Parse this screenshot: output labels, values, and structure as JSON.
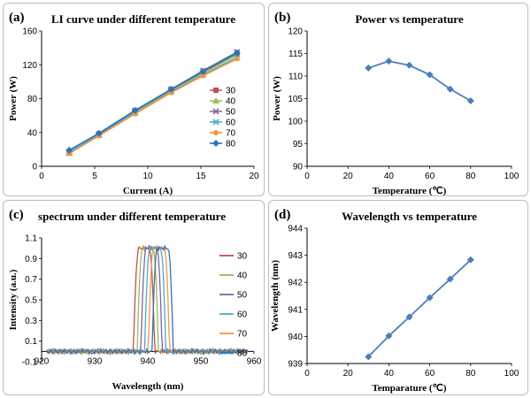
{
  "chart_data": [
    {
      "panel_label": "(a)",
      "type": "line",
      "title": "LI curve under different temperature",
      "xlabel": "Current (A)",
      "ylabel": "Power (W)",
      "xlim": [
        0,
        20
      ],
      "ylim": [
        0,
        160
      ],
      "xticks": [
        0,
        5,
        10,
        15,
        20
      ],
      "yticks": [
        0,
        40,
        80,
        120,
        160
      ],
      "xtick_labels": [
        "0",
        "5",
        "10",
        "15",
        "20"
      ],
      "ytick_labels": [
        "0",
        "40",
        "80",
        "120",
        "160"
      ],
      "legend_position": "middle-right",
      "series": [
        {
          "name": "30",
          "color": "#c0504d",
          "marker": "square",
          "x": [
            2.6,
            5.4,
            8.8,
            12.2,
            15.2,
            18.4
          ],
          "y": [
            16,
            37,
            64,
            90,
            111,
            133
          ]
        },
        {
          "name": "40",
          "color": "#9bbb59",
          "marker": "triangle",
          "x": [
            2.6,
            5.4,
            8.8,
            12.2,
            15.2,
            18.4
          ],
          "y": [
            16,
            37,
            64,
            89,
            110,
            132
          ]
        },
        {
          "name": "50",
          "color": "#8064a2",
          "marker": "x",
          "x": [
            2.6,
            5.4,
            8.8,
            12.2,
            15.2,
            18.4
          ],
          "y": [
            16,
            38,
            66,
            91,
            113,
            135
          ]
        },
        {
          "name": "60",
          "color": "#4bacc6",
          "marker": "x",
          "x": [
            2.6,
            5.4,
            8.8,
            12.2,
            15.2,
            18.4
          ],
          "y": [
            17,
            37,
            63,
            88,
            108,
            129
          ]
        },
        {
          "name": "70",
          "color": "#f79646",
          "marker": "circle",
          "x": [
            2.6,
            5.4,
            8.8,
            12.2,
            15.2,
            18.4
          ],
          "y": [
            15,
            36,
            62,
            87,
            107,
            127
          ]
        },
        {
          "name": "80",
          "color": "#2e75b6",
          "marker": "diamond",
          "x": [
            2.6,
            5.4,
            8.8,
            12.2,
            15.2,
            18.4
          ],
          "y": [
            19,
            39,
            66,
            91,
            112,
            134
          ]
        }
      ]
    },
    {
      "panel_label": "(b)",
      "type": "line",
      "title": "Power vs temperature",
      "xlabel": "Temperature (℃)",
      "ylabel": "Power (W)",
      "xlim": [
        0,
        100
      ],
      "ylim": [
        90,
        120
      ],
      "xticks": [
        0,
        20,
        40,
        60,
        80,
        100
      ],
      "yticks": [
        90,
        95,
        100,
        105,
        110,
        115,
        120
      ],
      "xtick_labels": [
        "0",
        "20",
        "40",
        "60",
        "80",
        "100"
      ],
      "ytick_labels": [
        "90",
        "95",
        "100",
        "105",
        "110",
        "115",
        "120"
      ],
      "series": [
        {
          "name": "Power",
          "color": "#4a7ebb",
          "marker": "diamond",
          "x": [
            30,
            40,
            50,
            60,
            70,
            80
          ],
          "y": [
            111.8,
            113.3,
            112.4,
            110.3,
            107.1,
            104.5
          ]
        }
      ]
    },
    {
      "panel_label": "(c)",
      "type": "line",
      "title": "spectrum under different temperature",
      "xlabel": "Wavelength (nm)",
      "ylabel": "Intensity (a.u.)",
      "xlim": [
        920,
        960
      ],
      "ylim": [
        -0.1,
        1.1
      ],
      "xticks": [
        920,
        930,
        940,
        950,
        960
      ],
      "yticks": [
        -0.1,
        0.1,
        0.3,
        0.5,
        0.7,
        0.9,
        1.1
      ],
      "xtick_labels": [
        "920",
        "930",
        "940",
        "950",
        "960"
      ],
      "ytick_labels": [
        "-0.1",
        "0.1",
        "0.3",
        "0.5",
        "0.7",
        "0.9",
        "1.1"
      ],
      "legend_position": "right",
      "series": [
        {
          "name": "30",
          "color": "#c0504d",
          "center": 939.3
        },
        {
          "name": "40",
          "color": "#9bbb59",
          "center": 940.0
        },
        {
          "name": "50",
          "color": "#8064a2",
          "center": 940.7
        },
        {
          "name": "60",
          "color": "#4bacc6",
          "center": 941.4
        },
        {
          "name": "70",
          "color": "#f79646",
          "center": 942.1
        },
        {
          "name": "80",
          "color": "#2e75b6",
          "center": 942.8
        }
      ]
    },
    {
      "panel_label": "(d)",
      "type": "line",
      "title": "Wavelength vs temperature",
      "xlabel": "Temparature (℃)",
      "ylabel": "Wavelength (nm)",
      "xlim": [
        0,
        100
      ],
      "ylim": [
        939,
        944
      ],
      "xticks": [
        0,
        20,
        40,
        60,
        80,
        100
      ],
      "yticks": [
        939,
        940,
        941,
        942,
        943,
        944
      ],
      "xtick_labels": [
        "0",
        "20",
        "40",
        "60",
        "80",
        "100"
      ],
      "ytick_labels": [
        "939",
        "940",
        "941",
        "942",
        "943",
        "944"
      ],
      "series": [
        {
          "name": "Wavelength",
          "color": "#4a7ebb",
          "marker": "diamond",
          "x": [
            30,
            40,
            50,
            60,
            70,
            80
          ],
          "y": [
            939.25,
            940.02,
            940.72,
            941.43,
            942.12,
            942.83
          ]
        }
      ]
    }
  ]
}
